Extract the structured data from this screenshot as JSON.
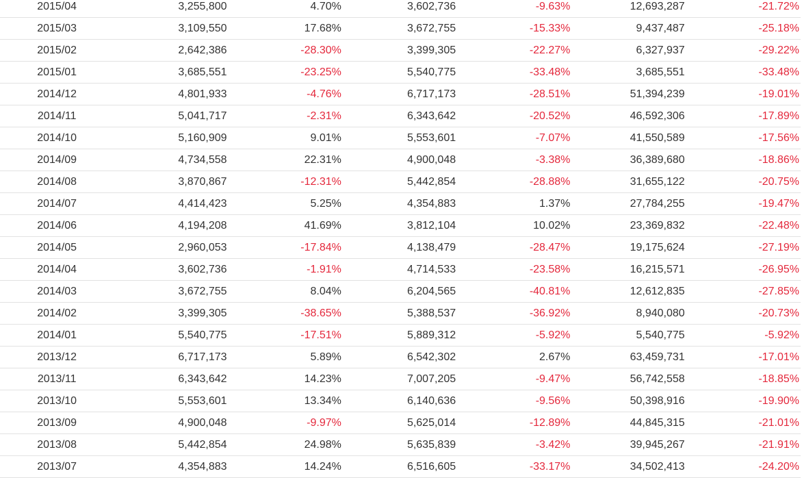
{
  "colors": {
    "text": "#333333",
    "negative": "#e4283c",
    "row_border": "#e2e2e2"
  },
  "table": {
    "rows": [
      [
        "2015/04",
        "3,255,800",
        "4.70%",
        "3,602,736",
        "-9.63%",
        "12,693,287",
        "-21.72%"
      ],
      [
        "2015/03",
        "3,109,550",
        "17.68%",
        "3,672,755",
        "-15.33%",
        "9,437,487",
        "-25.18%"
      ],
      [
        "2015/02",
        "2,642,386",
        "-28.30%",
        "3,399,305",
        "-22.27%",
        "6,327,937",
        "-29.22%"
      ],
      [
        "2015/01",
        "3,685,551",
        "-23.25%",
        "5,540,775",
        "-33.48%",
        "3,685,551",
        "-33.48%"
      ],
      [
        "2014/12",
        "4,801,933",
        "-4.76%",
        "6,717,173",
        "-28.51%",
        "51,394,239",
        "-19.01%"
      ],
      [
        "2014/11",
        "5,041,717",
        "-2.31%",
        "6,343,642",
        "-20.52%",
        "46,592,306",
        "-17.89%"
      ],
      [
        "2014/10",
        "5,160,909",
        "9.01%",
        "5,553,601",
        "-7.07%",
        "41,550,589",
        "-17.56%"
      ],
      [
        "2014/09",
        "4,734,558",
        "22.31%",
        "4,900,048",
        "-3.38%",
        "36,389,680",
        "-18.86%"
      ],
      [
        "2014/08",
        "3,870,867",
        "-12.31%",
        "5,442,854",
        "-28.88%",
        "31,655,122",
        "-20.75%"
      ],
      [
        "2014/07",
        "4,414,423",
        "5.25%",
        "4,354,883",
        "1.37%",
        "27,784,255",
        "-19.47%"
      ],
      [
        "2014/06",
        "4,194,208",
        "41.69%",
        "3,812,104",
        "10.02%",
        "23,369,832",
        "-22.48%"
      ],
      [
        "2014/05",
        "2,960,053",
        "-17.84%",
        "4,138,479",
        "-28.47%",
        "19,175,624",
        "-27.19%"
      ],
      [
        "2014/04",
        "3,602,736",
        "-1.91%",
        "4,714,533",
        "-23.58%",
        "16,215,571",
        "-26.95%"
      ],
      [
        "2014/03",
        "3,672,755",
        "8.04%",
        "6,204,565",
        "-40.81%",
        "12,612,835",
        "-27.85%"
      ],
      [
        "2014/02",
        "3,399,305",
        "-38.65%",
        "5,388,537",
        "-36.92%",
        "8,940,080",
        "-20.73%"
      ],
      [
        "2014/01",
        "5,540,775",
        "-17.51%",
        "5,889,312",
        "-5.92%",
        "5,540,775",
        "-5.92%"
      ],
      [
        "2013/12",
        "6,717,173",
        "5.89%",
        "6,542,302",
        "2.67%",
        "63,459,731",
        "-17.01%"
      ],
      [
        "2013/11",
        "6,343,642",
        "14.23%",
        "7,007,205",
        "-9.47%",
        "56,742,558",
        "-18.85%"
      ],
      [
        "2013/10",
        "5,553,601",
        "13.34%",
        "6,140,636",
        "-9.56%",
        "50,398,916",
        "-19.90%"
      ],
      [
        "2013/09",
        "4,900,048",
        "-9.97%",
        "5,625,014",
        "-12.89%",
        "44,845,315",
        "-21.01%"
      ],
      [
        "2013/08",
        "5,442,854",
        "24.98%",
        "5,635,839",
        "-3.42%",
        "39,945,267",
        "-21.91%"
      ],
      [
        "2013/07",
        "4,354,883",
        "14.24%",
        "6,516,605",
        "-33.17%",
        "34,502,413",
        "-24.20%"
      ]
    ]
  }
}
